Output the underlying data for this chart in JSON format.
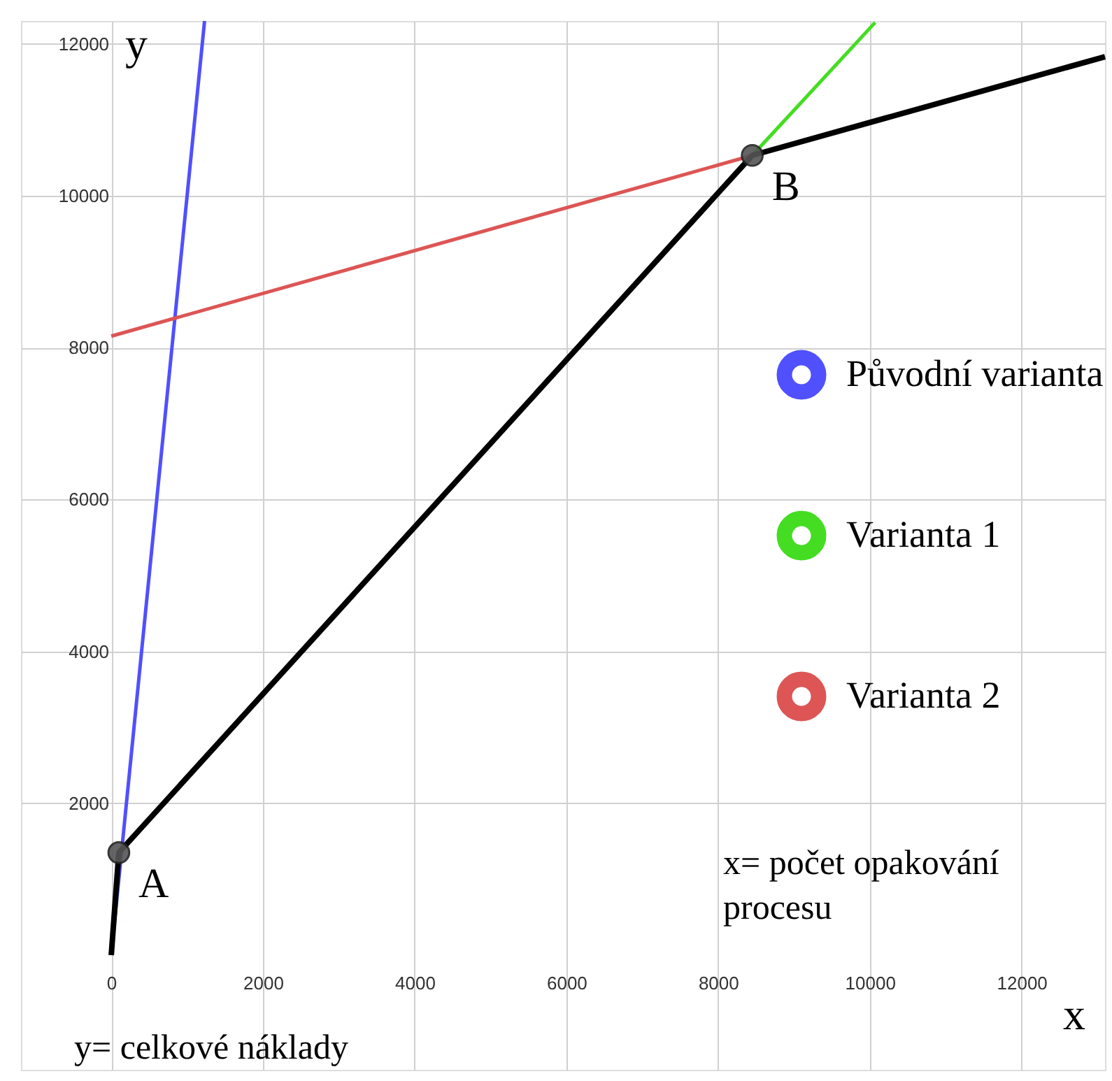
{
  "chart_data": {
    "type": "line",
    "xlabel": "x",
    "ylabel": "y",
    "xlim": [
      -1190,
      13100
    ],
    "ylim": [
      -1510,
      12300
    ],
    "xticks": [
      0,
      2000,
      4000,
      6000,
      8000,
      10000,
      12000
    ],
    "yticks": [
      2000,
      4000,
      6000,
      8000,
      10000,
      12000
    ],
    "grid": true,
    "legend": "right",
    "series": [
      {
        "name": "Původní varianta",
        "color": "#5050ff",
        "x": [
          0,
          1230
        ],
        "values": [
          0,
          12300
        ]
      },
      {
        "name": "Varianta 1",
        "color": "#44dd22",
        "x": [
          8450,
          10070
        ],
        "values": [
          10530,
          12280
        ]
      },
      {
        "name": "Varianta 2",
        "color": "#dd5555",
        "x": [
          0,
          8450
        ],
        "values": [
          8150,
          10530
        ]
      },
      {
        "color": "#000000",
        "x": [
          0,
          100,
          8450,
          13100
        ],
        "values": [
          0,
          1350,
          10530,
          11830
        ]
      },
      {
        "type": "scatter",
        "marker": "circle",
        "color": "#555555",
        "x": [
          100,
          8450
        ],
        "values": [
          1350,
          10530
        ]
      }
    ],
    "annotations": [
      {
        "text": "A",
        "x": 100,
        "y": 1350
      },
      {
        "text": "B",
        "x": 8450,
        "y": 10530
      },
      "x= počet opakování procesu",
      "y= celkové náklady"
    ]
  }
}
